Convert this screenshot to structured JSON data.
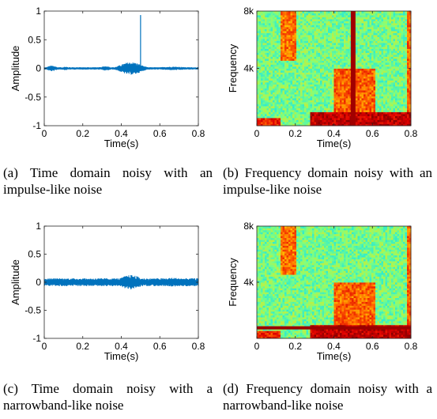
{
  "chart_data": [
    {
      "id": "a",
      "type": "line",
      "xlabel": "Time(s)",
      "ylabel": "Amplitude",
      "xlim": [
        0,
        0.8
      ],
      "ylim": [
        -1,
        1
      ],
      "xticks": [
        0,
        0.2,
        0.4,
        0.6,
        0.8
      ],
      "xtick_labels": [
        "0",
        "0.2",
        "0.4",
        "0.6",
        "0.8"
      ],
      "yticks": [
        -1,
        -0.5,
        0,
        0.5,
        1
      ],
      "ytick_labels": [
        "-1",
        "-0.5",
        "0",
        "0.5",
        "1"
      ],
      "series_color": "#0072BD",
      "waveform": {
        "noise_floor": 0.02,
        "segments": [
          {
            "from": 0.0,
            "to": 0.08,
            "amp": 0.05
          },
          {
            "from": 0.08,
            "to": 0.14,
            "amp": 0.03
          },
          {
            "from": 0.14,
            "to": 0.28,
            "amp": 0.01
          },
          {
            "from": 0.28,
            "to": 0.36,
            "amp": 0.04
          },
          {
            "from": 0.36,
            "to": 0.54,
            "amp": 0.11
          },
          {
            "from": 0.54,
            "to": 0.8,
            "amp": 0.03
          }
        ],
        "spikes": [
          {
            "x": 0.5,
            "y": 0.93
          }
        ]
      },
      "caption": "(a) Time domain noisy with an impulse-like noise"
    },
    {
      "id": "b",
      "type": "heatmap",
      "xlabel": "Time(s)",
      "ylabel": "Frequency",
      "xlim": [
        0,
        0.8
      ],
      "ylim": [
        0,
        8000
      ],
      "xticks": [
        0,
        0.2,
        0.4,
        0.6,
        0.8
      ],
      "xtick_labels": [
        "0",
        "0.2",
        "0.4",
        "0.6",
        "0.8"
      ],
      "yticks": [
        4000,
        8000
      ],
      "ytick_labels": [
        "4k",
        "8k"
      ],
      "colormap": [
        "#00008f",
        "#0060ff",
        "#00dfff",
        "#7fff7f",
        "#ffdf00",
        "#ff6000",
        "#df0000",
        "#800000"
      ],
      "background_level": 0.42,
      "features": [
        {
          "kind": "band",
          "from": 0.12,
          "to": 0.2,
          "fmin": 4500,
          "fmax": 8000,
          "level": 0.7
        },
        {
          "kind": "band",
          "from": 0.28,
          "to": 0.8,
          "fmin": 0,
          "fmax": 900,
          "level": 0.9
        },
        {
          "kind": "band",
          "from": 0.0,
          "to": 0.12,
          "fmin": 0,
          "fmax": 600,
          "level": 0.8
        },
        {
          "kind": "band",
          "from": 0.4,
          "to": 0.62,
          "fmin": 900,
          "fmax": 4000,
          "level": 0.72
        },
        {
          "kind": "band",
          "from": 0.78,
          "to": 0.8,
          "fmin": 0,
          "fmax": 8000,
          "level": 0.72
        },
        {
          "kind": "vertical_line",
          "x": 0.5,
          "level": 0.95
        }
      ],
      "caption": "(b) Frequency domain noisy with an impulse-like noise"
    },
    {
      "id": "c",
      "type": "line",
      "xlabel": "Time(s)",
      "ylabel": "Amplitude",
      "xlim": [
        0,
        0.8
      ],
      "ylim": [
        -1,
        1
      ],
      "xticks": [
        0,
        0.2,
        0.4,
        0.6,
        0.8
      ],
      "xtick_labels": [
        "0",
        "0.2",
        "0.4",
        "0.6",
        "0.8"
      ],
      "yticks": [
        -1,
        -0.5,
        0,
        0.5,
        1
      ],
      "ytick_labels": [
        "-1",
        "-0.5",
        "0",
        "0.5",
        "1"
      ],
      "series_color": "#0072BD",
      "waveform": {
        "noise_floor": 0.07,
        "segments": [
          {
            "from": 0.0,
            "to": 0.36,
            "amp": 0.07
          },
          {
            "from": 0.36,
            "to": 0.54,
            "amp": 0.13
          },
          {
            "from": 0.54,
            "to": 0.8,
            "amp": 0.08
          }
        ],
        "spikes": []
      },
      "caption": "(c) Time domain noisy with a narrowband-like noise"
    },
    {
      "id": "d",
      "type": "heatmap",
      "xlabel": "Time(s)",
      "ylabel": "Frequency",
      "xlim": [
        0,
        0.8
      ],
      "ylim": [
        0,
        8000
      ],
      "xticks": [
        0,
        0.2,
        0.4,
        0.6,
        0.8
      ],
      "xtick_labels": [
        "0",
        "0.2",
        "0.4",
        "0.6",
        "0.8"
      ],
      "yticks": [
        4000,
        8000
      ],
      "ytick_labels": [
        "4k",
        "8k"
      ],
      "colormap": [
        "#00008f",
        "#0060ff",
        "#00dfff",
        "#7fff7f",
        "#ffdf00",
        "#ff6000",
        "#df0000",
        "#800000"
      ],
      "background_level": 0.42,
      "features": [
        {
          "kind": "band",
          "from": 0.12,
          "to": 0.2,
          "fmin": 4500,
          "fmax": 8000,
          "level": 0.7
        },
        {
          "kind": "band",
          "from": 0.28,
          "to": 0.8,
          "fmin": 0,
          "fmax": 900,
          "level": 0.9
        },
        {
          "kind": "band",
          "from": 0.0,
          "to": 0.12,
          "fmin": 0,
          "fmax": 600,
          "level": 0.8
        },
        {
          "kind": "band",
          "from": 0.4,
          "to": 0.62,
          "fmin": 900,
          "fmax": 4000,
          "level": 0.72
        },
        {
          "kind": "band",
          "from": 0.78,
          "to": 0.8,
          "fmin": 0,
          "fmax": 8000,
          "level": 0.72
        },
        {
          "kind": "horizontal_line",
          "y": 750,
          "level": 0.96
        }
      ],
      "caption": "(d) Frequency domain noisy with a narrowband-like noise"
    }
  ]
}
